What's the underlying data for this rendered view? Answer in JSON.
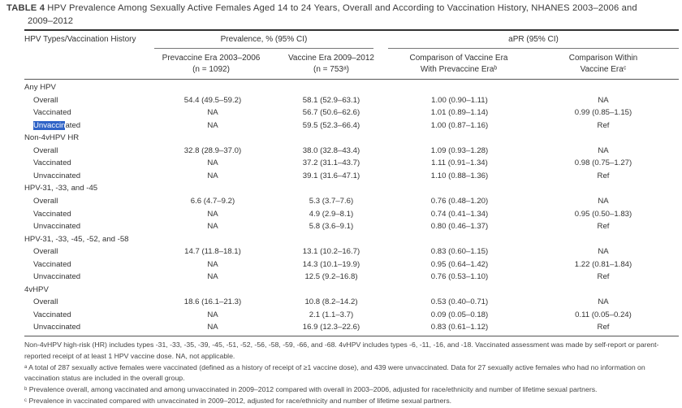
{
  "caption": {
    "label": "TABLE 4",
    "title_line1": "HPV Prevalence Among Sexually Active Females Aged 14 to 24 Years, Overall and According to Vaccination History, NHANES 2003–2006 and",
    "title_line2": "2009–2012"
  },
  "headers": {
    "col1": "HPV Types/Vaccination History",
    "prevalence_group": "Prevalence, % (95% CI)",
    "apr_group": "aPR (95% CI)",
    "prevaccine_line1": "Prevaccine Era 2003–2006",
    "prevaccine_line2": "(n = 1092)",
    "vaccine_line1": "Vaccine Era 2009–2012",
    "vaccine_line2": "(n = 753ᵃ)",
    "comp1_line1": "Comparison of Vaccine Era",
    "comp1_line2": "With Prevaccine Eraᵇ",
    "comp2_line1": "Comparison Within",
    "comp2_line2": "Vaccine Eraᶜ"
  },
  "groups": [
    {
      "name": "Any HPV",
      "rows": [
        {
          "label": "Overall",
          "pre": "54.4 (49.5–59.2)",
          "vac": "58.1 (52.9–63.1)",
          "cmp1": "1.00 (0.90–1.11)",
          "cmp2": "NA"
        },
        {
          "label": "Vaccinated",
          "pre": "NA",
          "vac": "56.7 (50.6–62.6)",
          "cmp1": "1.01 (0.89–1.14)",
          "cmp2": "0.99 (0.85–1.15)"
        },
        {
          "label": "Unvaccinated",
          "pre": "NA",
          "vac": "59.5 (52.3–66.4)",
          "cmp1": "1.00 (0.87–1.16)",
          "cmp2": "Ref"
        }
      ]
    },
    {
      "name": "Non-4vHPV HR",
      "rows": [
        {
          "label": "Overall",
          "pre": "32.8 (28.9–37.0)",
          "vac": "38.0 (32.8–43.4)",
          "cmp1": "1.09 (0.93–1.28)",
          "cmp2": "NA"
        },
        {
          "label": "Vaccinated",
          "pre": "NA",
          "vac": "37.2 (31.1–43.7)",
          "cmp1": "1.11 (0.91–1.34)",
          "cmp2": "0.98 (0.75–1.27)"
        },
        {
          "label": "Unvaccinated",
          "pre": "NA",
          "vac": "39.1 (31.6–47.1)",
          "cmp1": "1.10 (0.88–1.36)",
          "cmp2": "Ref"
        }
      ]
    },
    {
      "name": "HPV-31, -33, and -45",
      "rows": [
        {
          "label": "Overall",
          "pre": "6.6 (4.7–9.2)",
          "vac": "5.3 (3.7–7.6)",
          "cmp1": "0.76 (0.48–1.20)",
          "cmp2": "NA"
        },
        {
          "label": "Vaccinated",
          "pre": "NA",
          "vac": "4.9 (2.9–8.1)",
          "cmp1": "0.74 (0.41–1.34)",
          "cmp2": "0.95 (0.50–1.83)"
        },
        {
          "label": "Unvaccinated",
          "pre": "NA",
          "vac": "5.8 (3.6–9.1)",
          "cmp1": "0.80 (0.46–1.37)",
          "cmp2": "Ref"
        }
      ]
    },
    {
      "name": "HPV-31, -33, -45, -52, and -58",
      "rows": [
        {
          "label": "Overall",
          "pre": "14.7 (11.8–18.1)",
          "vac": "13.1 (10.2–16.7)",
          "cmp1": "0.83 (0.60–1.15)",
          "cmp2": "NA"
        },
        {
          "label": "Vaccinated",
          "pre": "NA",
          "vac": "14.3 (10.1–19.9)",
          "cmp1": "0.95 (0.64–1.42)",
          "cmp2": "1.22 (0.81–1.84)"
        },
        {
          "label": "Unvaccinated",
          "pre": "NA",
          "vac": "12.5 (9.2–16.8)",
          "cmp1": "0.76 (0.53–1.10)",
          "cmp2": "Ref"
        }
      ]
    },
    {
      "name": "4vHPV",
      "rows": [
        {
          "label": "Overall",
          "pre": "18.6 (16.1–21.3)",
          "vac": "10.8 (8.2–14.2)",
          "cmp1": "0.53 (0.40–0.71)",
          "cmp2": "NA"
        },
        {
          "label": "Vaccinated",
          "pre": "NA",
          "vac": "2.1 (1.1–3.7)",
          "cmp1": "0.09 (0.05–0.18)",
          "cmp2": "0.11 (0.05–0.24)"
        },
        {
          "label": "Unvaccinated",
          "pre": "NA",
          "vac": "16.9 (12.3–22.6)",
          "cmp1": "0.83 (0.61–1.12)",
          "cmp2": "Ref"
        }
      ]
    }
  ],
  "highlight": {
    "selected": "Unvaccin",
    "rest": "ated"
  },
  "footnotes": [
    "Non-4vHPV high-risk (HR) includes types -31, -33, -35, -39, -45, -51, -52, -56, -58, -59, -66, and -68. 4vHPV includes types -6, -11, -16, and -18. Vaccinated assessment was made by self-report or parent-reported receipt of at least 1 HPV vaccine dose. NA, not applicable.",
    "ᵃ A total of 287 sexually active females were vaccinated (defined as a history of receipt of ≥1 vaccine dose), and 439 were unvaccinated. Data for 27 sexually active females who had no information on vaccination status are included in the overall group.",
    "ᵇ Prevalence overall, among vaccinated and among unvaccinated in 2009–2012 compared with overall in 2003–2006, adjusted for race/ethnicity and number of lifetime sexual partners.",
    "ᶜ Prevalence in vaccinated compared with unvaccinated in 2009–2012, adjusted for race/ethnicity and number of lifetime sexual partners."
  ]
}
